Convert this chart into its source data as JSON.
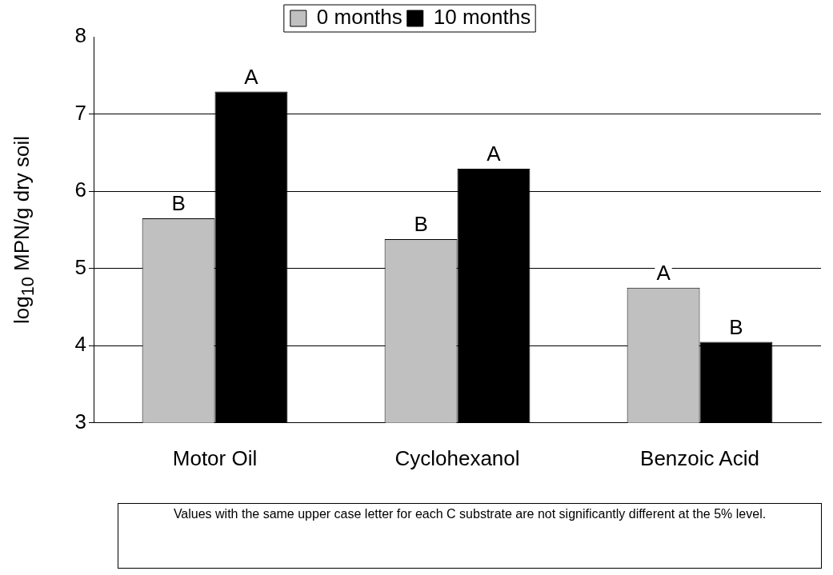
{
  "chart_data": {
    "type": "bar",
    "ylabel": "log$_{10}$ MPN/g dry soil",
    "categories": [
      "Motor Oil",
      "Cyclohexanol",
      "Benzoic Acid"
    ],
    "series": [
      {
        "name": "0 months",
        "color": "#c0c0c0",
        "values": [
          5.65,
          5.38,
          4.75
        ]
      },
      {
        "name": "10 months",
        "color": "#000000",
        "values": [
          7.29,
          6.29,
          4.05
        ]
      }
    ],
    "ylim": [
      3,
      8
    ],
    "yticks": [
      3,
      4,
      5,
      6,
      7,
      8
    ],
    "grid": "y",
    "legend": "top",
    "annotations": [
      {
        "text": "B",
        "x": "Motor Oil",
        "y": 5.65
      },
      {
        "text": "A",
        "x": "Motor Oil",
        "y": 7.29
      },
      {
        "text": "B",
        "x": "Cyclohexanol",
        "y": 5.38
      },
      {
        "text": "A",
        "x": "Cyclohexanol",
        "y": 6.29
      },
      {
        "text": "A",
        "x": "Benzoic Acid",
        "y": 4.75
      },
      {
        "text": "B",
        "x": "Benzoic Acid",
        "y": 4.05
      },
      "Values with the same upper case letter for each C substrate are not significantly different at the 5% level."
    ]
  }
}
